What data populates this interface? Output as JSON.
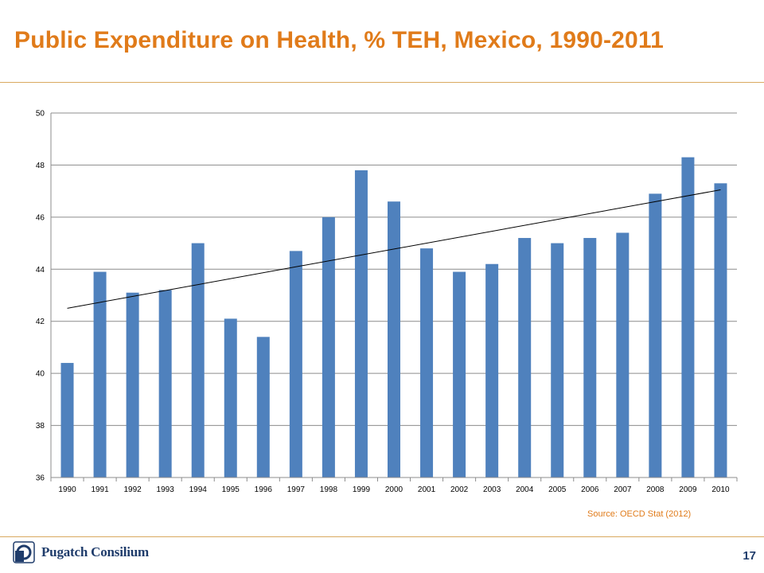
{
  "slide": {
    "title": "Public Expenditure on Health, % TEH, Mexico, 1990-2011",
    "source": "Source: OECD Stat (2012)",
    "logo_text": "Pugatch Consilium",
    "page_number": "17"
  },
  "colors": {
    "title": "#e07b1a",
    "bar": "#4f81bd",
    "rule": "#d9a960",
    "logo": "#1f3c6b"
  },
  "chart_data": {
    "type": "bar",
    "title": "",
    "xlabel": "",
    "ylabel": "",
    "categories": [
      "1990",
      "1991",
      "1992",
      "1993",
      "1994",
      "1995",
      "1996",
      "1997",
      "1998",
      "1999",
      "2000",
      "2001",
      "2002",
      "2003",
      "2004",
      "2005",
      "2006",
      "2007",
      "2008",
      "2009",
      "2010"
    ],
    "series": [
      {
        "values": [
          40.4,
          43.9,
          43.1,
          43.2,
          45.0,
          42.1,
          41.4,
          44.7,
          46.0,
          47.8,
          46.6,
          44.8,
          43.9,
          44.2,
          45.2,
          45.0,
          45.2,
          45.4,
          46.9,
          48.3,
          47.3
        ]
      }
    ],
    "ylim": [
      36,
      50
    ],
    "yticks": [
      36,
      38,
      40,
      42,
      44,
      46,
      48,
      50
    ],
    "grid": true,
    "legend": "none",
    "trendline": {
      "type": "linear",
      "start": 42.5,
      "end": 47.05
    }
  }
}
